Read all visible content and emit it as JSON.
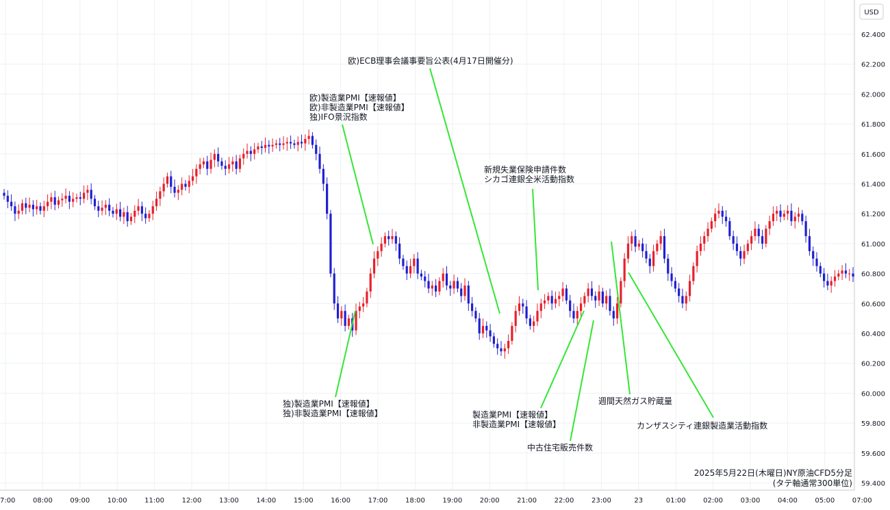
{
  "chart_data": {
    "type": "candlestick",
    "title": "2025年5月22日(木曜日)NY原油CFD5分足",
    "subtitle": "(タテ軸通常300単位)",
    "currency": "USD",
    "ylim": [
      59.4,
      62.5
    ],
    "y_ticks": [
      "62.400",
      "62.200",
      "62.000",
      "61.800",
      "61.600",
      "61.400",
      "61.200",
      "61.000",
      "60.800",
      "60.600",
      "60.400",
      "60.200",
      "60.000",
      "59.800",
      "59.600",
      "59.400"
    ],
    "x_ticks": [
      "07:00",
      "08:00",
      "09:00",
      "10:00",
      "11:00",
      "12:00",
      "13:00",
      "14:00",
      "15:00",
      "16:00",
      "17:00",
      "18:00",
      "19:00",
      "20:00",
      "21:00",
      "22:00",
      "23:00",
      "23",
      "01:00",
      "02:00",
      "03:00",
      "04:00",
      "05:00",
      "07:00"
    ],
    "up_color": "#e8202a",
    "down_color": "#1f1fd0",
    "annotation_color": "#33e633",
    "series_close": [
      61.32,
      61.28,
      61.25,
      61.2,
      61.22,
      61.27,
      61.24,
      61.26,
      61.23,
      61.25,
      61.22,
      61.25,
      61.28,
      61.31,
      61.26,
      61.29,
      61.3,
      61.32,
      61.28,
      61.3,
      61.31,
      61.3,
      61.34,
      61.36,
      61.3,
      61.25,
      61.22,
      61.24,
      61.26,
      61.22,
      61.2,
      61.23,
      61.18,
      61.21,
      61.15,
      61.18,
      61.22,
      61.25,
      61.2,
      61.17,
      61.2,
      61.25,
      61.3,
      61.35,
      61.4,
      61.45,
      61.38,
      61.34,
      61.36,
      61.4,
      61.38,
      61.42,
      61.45,
      61.5,
      61.53,
      61.55,
      61.5,
      61.56,
      61.6,
      61.55,
      61.52,
      61.5,
      61.53,
      61.55,
      61.5,
      61.57,
      61.6,
      61.62,
      61.6,
      61.63,
      61.65,
      61.64,
      61.66,
      61.65,
      61.66,
      61.67,
      61.66,
      61.67,
      61.68,
      61.67,
      61.66,
      61.68,
      61.67,
      61.7,
      61.72,
      61.66,
      61.6,
      61.5,
      61.4,
      61.2,
      60.8,
      60.6,
      60.5,
      60.55,
      60.45,
      60.5,
      60.42,
      60.55,
      60.58,
      60.6,
      60.68,
      60.8,
      60.9,
      60.95,
      61.0,
      61.05,
      61.03,
      61.05,
      61.0,
      60.9,
      60.85,
      60.8,
      60.85,
      60.9,
      60.8,
      60.78,
      60.75,
      60.7,
      60.72,
      60.68,
      60.75,
      60.8,
      60.72,
      60.7,
      60.75,
      60.7,
      60.65,
      60.72,
      60.6,
      60.55,
      60.5,
      60.4,
      60.45,
      60.42,
      60.38,
      60.33,
      60.3,
      60.28,
      60.3,
      60.35,
      60.45,
      60.55,
      60.6,
      60.58,
      60.5,
      60.45,
      60.48,
      60.55,
      60.6,
      60.62,
      60.65,
      60.6,
      60.63,
      60.65,
      60.7,
      60.62,
      60.55,
      60.5,
      60.55,
      60.6,
      60.65,
      60.7,
      60.65,
      60.62,
      60.68,
      60.6,
      60.65,
      60.55,
      60.5,
      60.6,
      60.75,
      60.9,
      61.0,
      61.05,
      60.98,
      61.0,
      60.95,
      60.9,
      60.85,
      60.95,
      61.0,
      61.05,
      60.9,
      60.8,
      60.75,
      60.7,
      60.65,
      60.6,
      60.65,
      60.75,
      60.85,
      60.95,
      61.0,
      61.05,
      61.1,
      61.15,
      61.2,
      61.22,
      61.18,
      61.15,
      61.05,
      61.0,
      60.95,
      60.9,
      60.95,
      61.0,
      61.05,
      61.1,
      61.05,
      61.0,
      61.1,
      61.15,
      61.2,
      61.22,
      61.18,
      61.2,
      61.22,
      61.15,
      61.18,
      61.2,
      61.15,
      61.05,
      60.95,
      60.9,
      60.85,
      60.8,
      60.75,
      60.72,
      60.75,
      60.78,
      60.8,
      60.82,
      60.8,
      60.8,
      60.78
    ],
    "annotations": [
      {
        "lines": [
          "欧)ECB理事会議事要旨公表(4月17日開催分)"
        ],
        "text_anchor": "top"
      },
      {
        "lines": [
          "欧)製造業PMI【速報値】",
          "欧)非製造業PMI【速報値】",
          "独)IFO景況指数"
        ],
        "text_anchor": "top"
      },
      {
        "lines": [
          "新規失業保険申請件数",
          "シカゴ連銀全米活動指数"
        ],
        "text_anchor": "top"
      },
      {
        "lines": [
          "独)製造業PMI【速報値】",
          "独)非製造業PMI【速報値】"
        ],
        "text_anchor": "bottom"
      },
      {
        "lines": [
          "製造業PMI【速報値】",
          "非製造業PMI【速報値】"
        ],
        "text_anchor": "bottom"
      },
      {
        "lines": [
          "中古住宅販売件数"
        ],
        "text_anchor": "bottom"
      },
      {
        "lines": [
          "週間天然ガス貯蔵量"
        ],
        "text_anchor": "bottom"
      },
      {
        "lines": [
          "カンザスシティ連銀製造業活動指数"
        ],
        "text_anchor": "bottom"
      }
    ]
  }
}
